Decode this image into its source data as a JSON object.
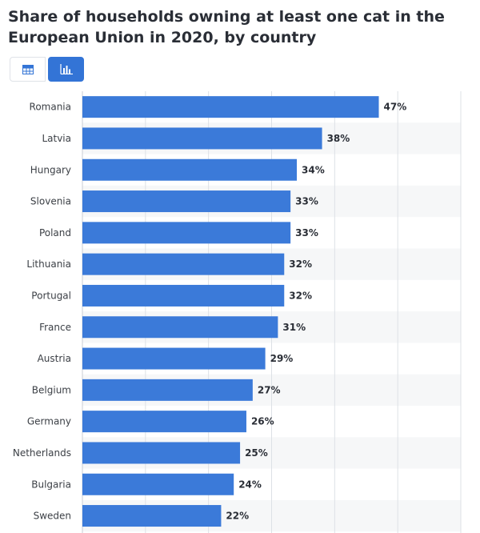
{
  "title": "Share of households owning at least one cat in the European Union in 2020, by country",
  "view_toggle": {
    "table_icon": "table-icon",
    "chart_icon": "bar-chart-icon",
    "active": "chart"
  },
  "colors": {
    "bar": "#3b7ad9",
    "stripe": "#f6f7f8",
    "grid": "#dde1e6"
  },
  "chart_data": {
    "type": "bar",
    "orientation": "horizontal",
    "title": "Share of households owning at least one cat in the European Union in 2020, by country",
    "categories": [
      "Romania",
      "Latvia",
      "Hungary",
      "Slovenia",
      "Poland",
      "Lithuania",
      "Portugal",
      "France",
      "Austria",
      "Belgium",
      "Germany",
      "Netherlands",
      "Bulgaria",
      "Sweden"
    ],
    "values": [
      47,
      38,
      34,
      33,
      33,
      32,
      32,
      31,
      29,
      27,
      26,
      25,
      24,
      22
    ],
    "value_labels": [
      "47%",
      "38%",
      "34%",
      "33%",
      "33%",
      "32%",
      "32%",
      "31%",
      "29%",
      "27%",
      "26%",
      "25%",
      "24%",
      "22%"
    ],
    "unit": "%",
    "xlim": [
      0,
      60
    ],
    "grid": true,
    "xlabel": "",
    "ylabel": ""
  }
}
